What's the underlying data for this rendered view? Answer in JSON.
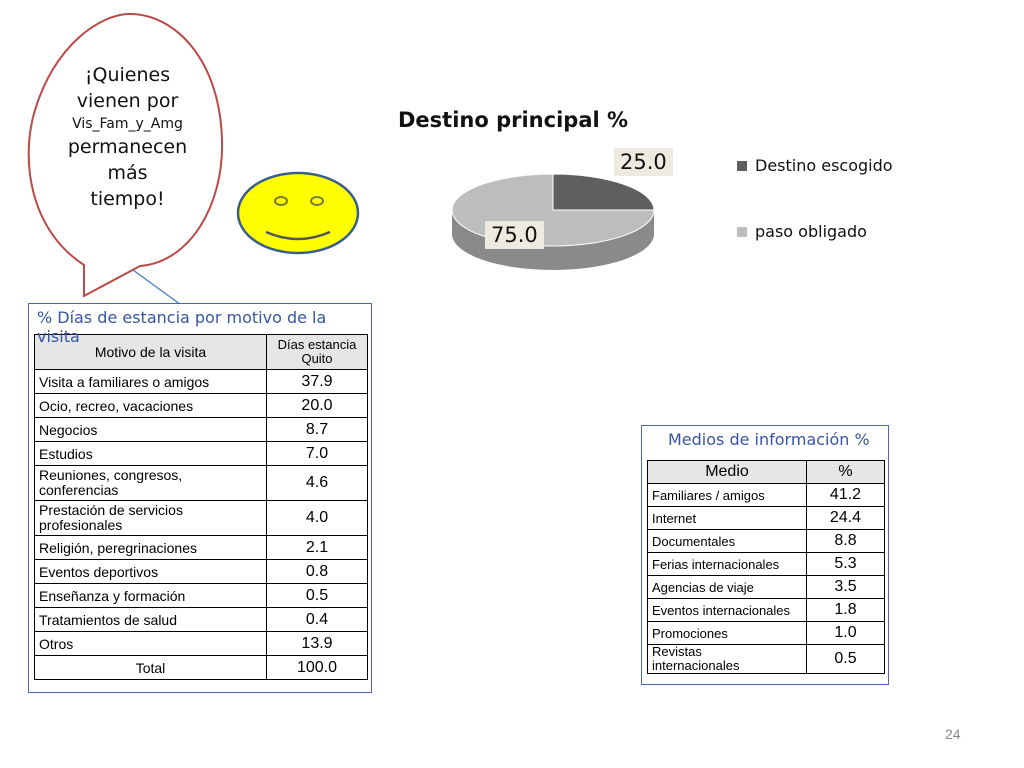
{
  "bubble": {
    "line1": "¡Quienes",
    "line2": "vienen por",
    "line3": "Vis_Fam_y_Amg",
    "line4": "permanecen",
    "line5": "más",
    "line6": "tiempo!"
  },
  "colors": {
    "bubble_border": "#b94a48",
    "smiley_fill": "#ffff00",
    "smiley_stroke": "#3a5e8c",
    "pie_dark": "#5f5f5f",
    "pie_light": "#bdbdbd",
    "table_border_accent": "#4a63b2",
    "arrow": "#4a7ac9"
  },
  "chart_data": {
    "type": "pie",
    "title": "Destino principal %",
    "labels": [
      "Destino escogido",
      "paso obligado"
    ],
    "values": [
      25.0,
      75.0
    ],
    "value_labels": [
      "25.0",
      "75.0"
    ],
    "legend_position": "right",
    "colors": [
      "#5f5f5f",
      "#bdbdbd"
    ]
  },
  "stay_table": {
    "title": "% Días de estancia por motivo de la visita",
    "col1": "Motivo de la visita",
    "col2_line1": "Días estancia",
    "col2_line2": "Quito",
    "rows": [
      {
        "motivo": "Visita a familiares o amigos",
        "dias": "37.9"
      },
      {
        "motivo": "Ocio, recreo, vacaciones",
        "dias": "20.0"
      },
      {
        "motivo": "Negocios",
        "dias": "8.7"
      },
      {
        "motivo": "Estudios",
        "dias": "7.0"
      },
      {
        "motivo_l1": "Reuniones, congresos,",
        "motivo_l2": "conferencias",
        "dias": "4.6"
      },
      {
        "motivo_l1": "Prestación de servicios",
        "motivo_l2": "profesionales",
        "dias": "4.0"
      },
      {
        "motivo": "Religión, peregrinaciones",
        "dias": "2.1"
      },
      {
        "motivo": "Eventos deportivos",
        "dias": "0.8"
      },
      {
        "motivo": "Enseñanza y formación",
        "dias": "0.5"
      },
      {
        "motivo": "Tratamientos de salud",
        "dias": "0.4"
      },
      {
        "motivo": "Otros",
        "dias": "13.9"
      },
      {
        "motivo": "Total",
        "dias": "100.0"
      }
    ]
  },
  "media_table": {
    "title": "Medios de información %",
    "col1": "Medio",
    "col2": "%",
    "rows": [
      {
        "medio": "Familiares / amigos",
        "pct": "41.2"
      },
      {
        "medio": "Internet",
        "pct": "24.4"
      },
      {
        "medio": "Documentales",
        "pct": "8.8"
      },
      {
        "medio": "Ferias internacionales",
        "pct": "5.3"
      },
      {
        "medio": "Agencias de viaje",
        "pct": "3.5"
      },
      {
        "medio": "Eventos internacionales",
        "pct": "1.8"
      },
      {
        "medio": "Promociones",
        "pct": "1.0"
      },
      {
        "medio_l1": "Revistas",
        "medio_l2": "internacionales",
        "pct": "0.5"
      }
    ]
  },
  "page_number": "24"
}
